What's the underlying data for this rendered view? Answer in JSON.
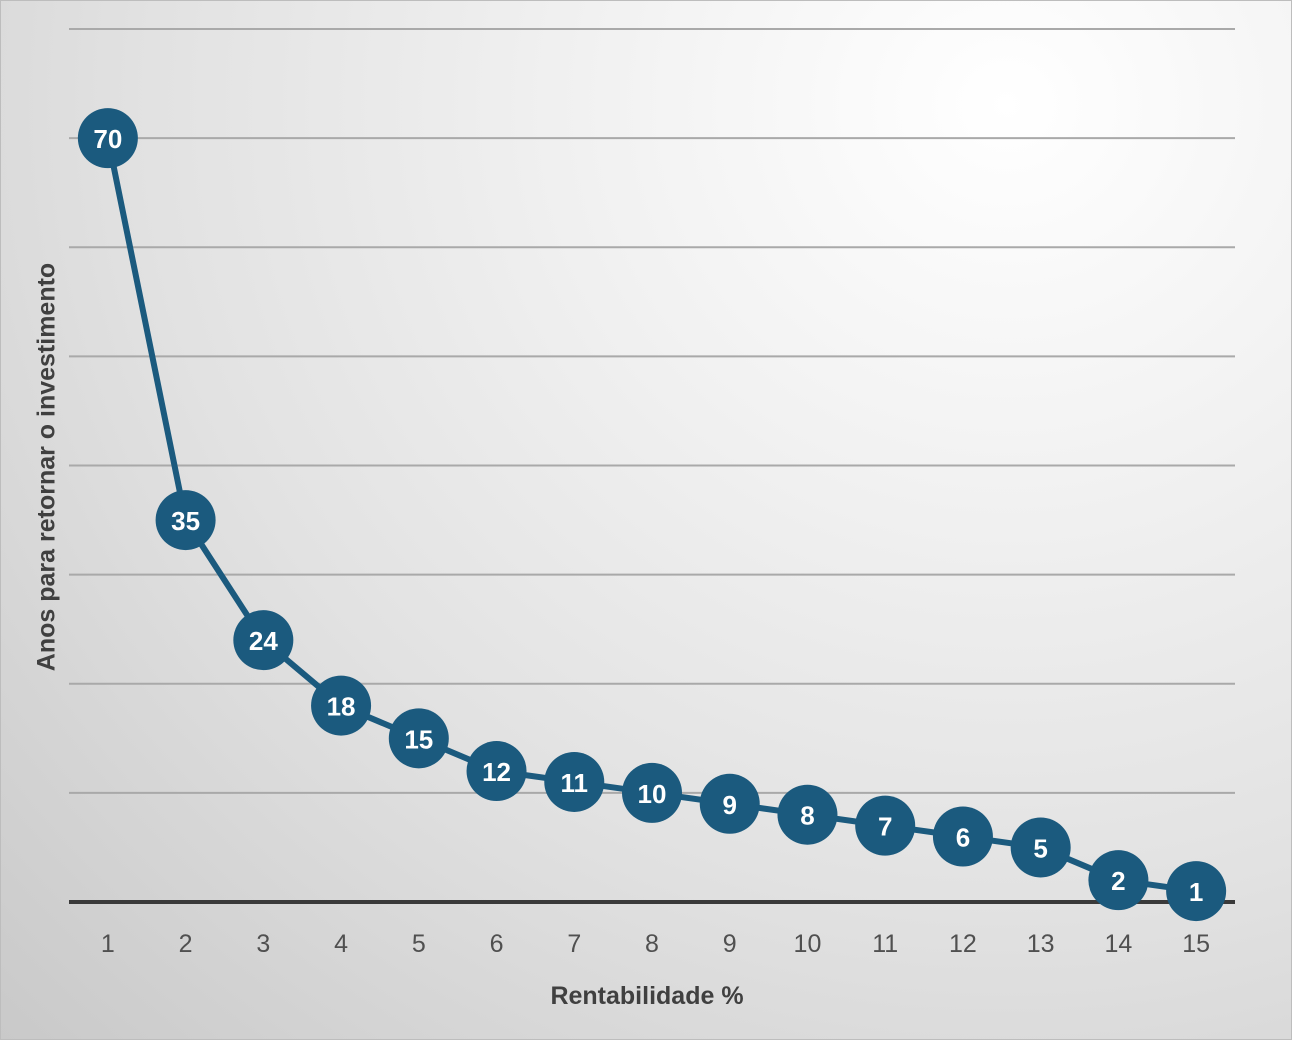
{
  "chart_data": {
    "type": "line",
    "xlabel": "Rentabilidade %",
    "ylabel": "Anos para retornar o investimento",
    "categories": [
      "1",
      "2",
      "3",
      "4",
      "5",
      "6",
      "7",
      "8",
      "9",
      "10",
      "11",
      "12",
      "13",
      "14",
      "15"
    ],
    "values": [
      70,
      35,
      24,
      18,
      15,
      12,
      11,
      10,
      9,
      8,
      7,
      6,
      5,
      2,
      1
    ],
    "ylim": [
      0,
      80
    ],
    "grid": true,
    "legend": "none",
    "data_labels": true,
    "colors": {
      "series": "#1b5a7e",
      "label_text": "#ffffff"
    }
  }
}
